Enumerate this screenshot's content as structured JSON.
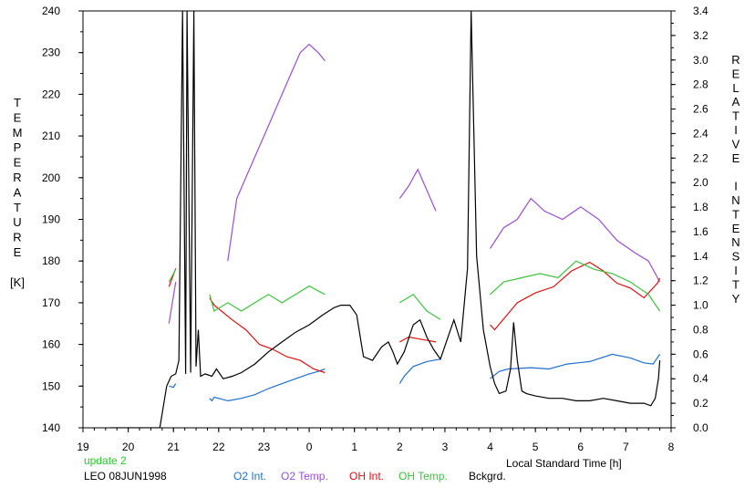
{
  "colors": {
    "o2_int": "#1f6fd0",
    "o2_temp": "#9a4fd6",
    "oh_int": "#e01010",
    "oh_temp": "#3cc23c",
    "bckgrd": "#000000",
    "update": "#22cc22"
  },
  "footer": {
    "update": "update 2",
    "site_date": "LEO 08JUN1998"
  },
  "chart_data": {
    "type": "line",
    "xlabel": "Local Standard Time [h]",
    "ylabel_left": [
      "T",
      "E",
      "M",
      "P",
      "E",
      "R",
      "A",
      "T",
      "U",
      "R",
      "E",
      "",
      "[K]"
    ],
    "ylabel_right": [
      "R",
      "E",
      "L",
      "A",
      "T",
      "I",
      "V",
      "E",
      "",
      "I",
      "N",
      "T",
      "E",
      "N",
      "S",
      "I",
      "T",
      "Y"
    ],
    "xlim": [
      19,
      32
    ],
    "x_tick_labels": [
      "19",
      "20",
      "21",
      "22",
      "23",
      "0",
      "1",
      "2",
      "3",
      "4",
      "5",
      "6",
      "7",
      "8"
    ],
    "ylim_left": [
      140,
      240
    ],
    "y_left_ticks": [
      140,
      150,
      160,
      170,
      180,
      190,
      200,
      210,
      220,
      230,
      240
    ],
    "ylim_right": [
      0.0,
      3.4
    ],
    "y_right_ticks": [
      "0.0",
      "0.2",
      "0.4",
      "0.6",
      "0.8",
      "1.0",
      "1.2",
      "1.4",
      "1.6",
      "1.8",
      "2.0",
      "2.2",
      "2.4",
      "2.6",
      "2.8",
      "3.0",
      "3.2",
      "3.4"
    ],
    "grid": false,
    "legend_position": "bottom",
    "series": [
      {
        "name": "O2 Int.",
        "axis": "right",
        "color": "#1f6fd0",
        "points": [
          [
            20.9,
            0.34
          ],
          [
            21.0,
            0.33
          ],
          [
            21.05,
            0.36
          ],
          [
            21.8,
            0.24
          ],
          [
            21.85,
            0.22
          ],
          [
            21.9,
            0.25
          ],
          [
            22.2,
            0.22
          ],
          [
            22.5,
            0.24
          ],
          [
            22.8,
            0.27
          ],
          [
            23.1,
            0.32
          ],
          [
            23.4,
            0.36
          ],
          [
            23.7,
            0.4
          ],
          [
            24.0,
            0.44
          ],
          [
            24.2,
            0.46
          ],
          [
            24.35,
            0.48
          ],
          [
            26.0,
            0.36
          ],
          [
            26.1,
            0.42
          ],
          [
            26.3,
            0.5
          ],
          [
            26.6,
            0.54
          ],
          [
            26.9,
            0.56
          ],
          [
            28.0,
            0.4
          ],
          [
            28.2,
            0.46
          ],
          [
            28.4,
            0.48
          ],
          [
            28.9,
            0.49
          ],
          [
            29.3,
            0.48
          ],
          [
            29.7,
            0.52
          ],
          [
            30.2,
            0.54
          ],
          [
            30.7,
            0.6
          ],
          [
            31.1,
            0.57
          ],
          [
            31.4,
            0.53
          ],
          [
            31.6,
            0.52
          ],
          [
            31.75,
            0.6
          ]
        ]
      },
      {
        "name": "O2 Temp.",
        "axis": "left",
        "color": "#9a4fd6",
        "points": [
          [
            20.9,
            165
          ],
          [
            21.05,
            175
          ],
          [
            22.2,
            180
          ],
          [
            22.4,
            195
          ],
          [
            22.6,
            200
          ],
          [
            22.8,
            205
          ],
          [
            23.0,
            210
          ],
          [
            23.2,
            215
          ],
          [
            23.4,
            220
          ],
          [
            23.6,
            225
          ],
          [
            23.8,
            230
          ],
          [
            24.0,
            232
          ],
          [
            24.2,
            230
          ],
          [
            24.35,
            228
          ],
          [
            26.0,
            195
          ],
          [
            26.2,
            198
          ],
          [
            26.4,
            202
          ],
          [
            26.6,
            197
          ],
          [
            26.8,
            192
          ],
          [
            28.0,
            183
          ],
          [
            28.3,
            188
          ],
          [
            28.6,
            190
          ],
          [
            28.9,
            195
          ],
          [
            29.2,
            192
          ],
          [
            29.6,
            190
          ],
          [
            30.0,
            193
          ],
          [
            30.4,
            190
          ],
          [
            30.8,
            185
          ],
          [
            31.2,
            182
          ],
          [
            31.5,
            180
          ],
          [
            31.75,
            175
          ]
        ]
      },
      {
        "name": "OH Int.",
        "axis": "right",
        "color": "#e01010",
        "points": [
          [
            20.9,
            1.15
          ],
          [
            20.95,
            1.2
          ],
          [
            21.0,
            1.25
          ],
          [
            21.05,
            1.3
          ],
          [
            21.8,
            1.06
          ],
          [
            21.9,
            1.0
          ],
          [
            22.3,
            0.88
          ],
          [
            22.6,
            0.8
          ],
          [
            22.9,
            0.68
          ],
          [
            23.2,
            0.64
          ],
          [
            23.5,
            0.58
          ],
          [
            23.8,
            0.55
          ],
          [
            24.1,
            0.48
          ],
          [
            24.35,
            0.45
          ],
          [
            26.0,
            0.7
          ],
          [
            26.2,
            0.74
          ],
          [
            26.5,
            0.72
          ],
          [
            26.8,
            0.7
          ],
          [
            28.0,
            0.84
          ],
          [
            28.1,
            0.8
          ],
          [
            28.6,
            1.02
          ],
          [
            29.0,
            1.1
          ],
          [
            29.4,
            1.15
          ],
          [
            29.8,
            1.28
          ],
          [
            30.2,
            1.35
          ],
          [
            30.5,
            1.28
          ],
          [
            30.8,
            1.18
          ],
          [
            31.1,
            1.14
          ],
          [
            31.4,
            1.06
          ],
          [
            31.7,
            1.18
          ],
          [
            31.75,
            1.22
          ]
        ]
      },
      {
        "name": "OH Temp.",
        "axis": "left",
        "color": "#3cc23c",
        "points": [
          [
            20.9,
            175
          ],
          [
            21.05,
            178
          ],
          [
            21.8,
            172
          ],
          [
            21.9,
            168
          ],
          [
            22.2,
            170
          ],
          [
            22.5,
            168
          ],
          [
            22.8,
            170
          ],
          [
            23.1,
            172
          ],
          [
            23.4,
            170
          ],
          [
            23.7,
            172
          ],
          [
            24.0,
            174
          ],
          [
            24.35,
            172
          ],
          [
            26.0,
            170
          ],
          [
            26.3,
            172
          ],
          [
            26.6,
            168
          ],
          [
            26.9,
            166
          ],
          [
            28.0,
            172
          ],
          [
            28.3,
            175
          ],
          [
            28.7,
            176
          ],
          [
            29.1,
            177
          ],
          [
            29.5,
            176
          ],
          [
            29.9,
            180
          ],
          [
            30.3,
            178
          ],
          [
            30.7,
            177
          ],
          [
            31.1,
            175
          ],
          [
            31.5,
            172
          ],
          [
            31.75,
            168
          ]
        ]
      },
      {
        "name": "Bckgrd.",
        "axis": "right",
        "color": "#000000",
        "points": [
          [
            19.6,
            0.0
          ],
          [
            20.1,
            0.0
          ],
          [
            20.7,
            0.0
          ],
          [
            20.85,
            0.34
          ],
          [
            20.95,
            0.42
          ],
          [
            21.05,
            0.44
          ],
          [
            21.12,
            0.55
          ],
          [
            21.2,
            3.4
          ],
          [
            21.27,
            0.44
          ],
          [
            21.3,
            3.4
          ],
          [
            21.38,
            0.45
          ],
          [
            21.45,
            3.4
          ],
          [
            21.5,
            0.5
          ],
          [
            21.55,
            0.8
          ],
          [
            21.6,
            0.42
          ],
          [
            21.7,
            0.44
          ],
          [
            21.85,
            0.42
          ],
          [
            21.95,
            0.48
          ],
          [
            22.1,
            0.4
          ],
          [
            22.3,
            0.42
          ],
          [
            22.5,
            0.45
          ],
          [
            22.8,
            0.52
          ],
          [
            23.1,
            0.62
          ],
          [
            23.4,
            0.7
          ],
          [
            23.7,
            0.78
          ],
          [
            24.0,
            0.84
          ],
          [
            24.3,
            0.92
          ],
          [
            24.55,
            0.98
          ],
          [
            24.7,
            1.0
          ],
          [
            24.9,
            1.0
          ],
          [
            25.05,
            0.92
          ],
          [
            25.2,
            0.58
          ],
          [
            25.4,
            0.55
          ],
          [
            25.6,
            0.66
          ],
          [
            25.75,
            0.7
          ],
          [
            25.85,
            0.62
          ],
          [
            25.95,
            0.52
          ],
          [
            26.1,
            0.62
          ],
          [
            26.3,
            0.84
          ],
          [
            26.45,
            0.88
          ],
          [
            26.6,
            0.74
          ],
          [
            26.75,
            0.64
          ],
          [
            26.9,
            0.56
          ],
          [
            27.05,
            0.72
          ],
          [
            27.2,
            0.88
          ],
          [
            27.35,
            0.7
          ],
          [
            27.5,
            1.3
          ],
          [
            27.58,
            3.4
          ],
          [
            27.7,
            1.4
          ],
          [
            27.85,
            0.8
          ],
          [
            28.0,
            0.5
          ],
          [
            28.1,
            0.36
          ],
          [
            28.2,
            0.28
          ],
          [
            28.35,
            0.3
          ],
          [
            28.45,
            0.48
          ],
          [
            28.52,
            0.86
          ],
          [
            28.6,
            0.55
          ],
          [
            28.7,
            0.3
          ],
          [
            28.8,
            0.28
          ],
          [
            29.0,
            0.26
          ],
          [
            29.3,
            0.24
          ],
          [
            29.6,
            0.24
          ],
          [
            29.9,
            0.22
          ],
          [
            30.2,
            0.22
          ],
          [
            30.5,
            0.24
          ],
          [
            30.8,
            0.22
          ],
          [
            31.1,
            0.2
          ],
          [
            31.4,
            0.2
          ],
          [
            31.55,
            0.18
          ],
          [
            31.65,
            0.24
          ],
          [
            31.72,
            0.4
          ],
          [
            31.75,
            0.55
          ]
        ]
      }
    ]
  }
}
